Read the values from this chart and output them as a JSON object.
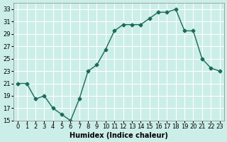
{
  "x": [
    0,
    1,
    2,
    3,
    4,
    5,
    6,
    7,
    8,
    9,
    10,
    11,
    12,
    13,
    14,
    15,
    16,
    17,
    18,
    19,
    20,
    21,
    22,
    23
  ],
  "y": [
    21,
    21,
    18.5,
    19,
    17,
    16,
    15,
    18.5,
    23,
    24,
    26.5,
    29.5,
    30.5,
    30.5,
    30.5,
    31.5,
    32.5,
    32.5,
    33,
    29.5,
    29.5,
    25,
    23.5,
    23
  ],
  "line_color": "#1a6b5a",
  "marker": "D",
  "marker_size": 2.5,
  "bg_color": "#cceee8",
  "grid_color": "#ffffff",
  "xlabel": "Humidex (Indice chaleur)",
  "xlim": [
    -0.5,
    23.5
  ],
  "ylim": [
    15,
    34
  ],
  "yticks": [
    15,
    17,
    19,
    21,
    23,
    25,
    27,
    29,
    31,
    33
  ],
  "xticks": [
    0,
    1,
    2,
    3,
    4,
    5,
    6,
    7,
    8,
    9,
    10,
    11,
    12,
    13,
    14,
    15,
    16,
    17,
    18,
    19,
    20,
    21,
    22,
    23
  ],
  "xlabel_fontsize": 7,
  "tick_fontsize": 6
}
